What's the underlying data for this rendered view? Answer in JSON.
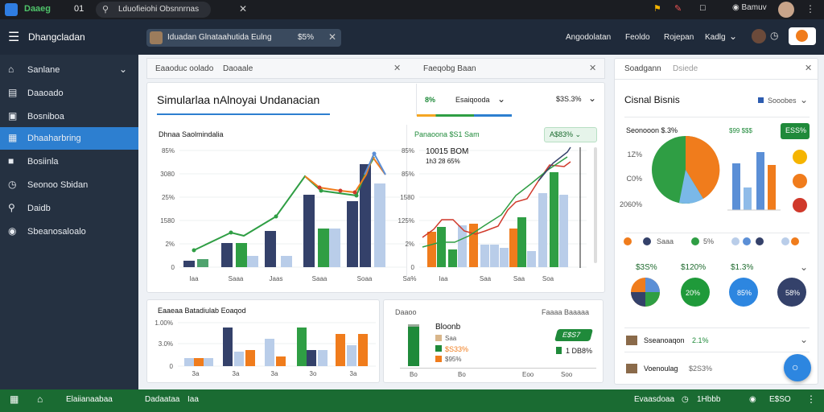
{
  "topbar": {
    "app_name": "Daaeg",
    "count": "01",
    "search_text": "Lduofieiohi Obsnnrnas",
    "user": "Bamuv"
  },
  "header": {
    "title": "Dhangcladan",
    "chip_text": "Iduadan Glnataahutida Eulng",
    "chip_value": "$5%",
    "nav": [
      "Angodolatan",
      "Feoldo",
      "Rojepan",
      "Kadlg"
    ]
  },
  "sidebar": {
    "items": [
      {
        "label": "Sanlane",
        "icon": "home-icon"
      },
      {
        "label": "Daaoado",
        "icon": "document-icon"
      },
      {
        "label": "Bosniboa",
        "icon": "briefcase-icon"
      },
      {
        "label": "Dhaaharbring",
        "icon": "calendar-icon"
      },
      {
        "label": "Bosiinla",
        "icon": "box-icon"
      },
      {
        "label": "Seonoo Sbidan",
        "icon": "clock-icon"
      },
      {
        "label": "Daidb",
        "icon": "search-icon"
      },
      {
        "label": "Sbeanosaloalo",
        "icon": "lock-icon"
      }
    ]
  },
  "tabs": {
    "left_a": "Eaaoduc oolado",
    "left_b": "Daoaale",
    "right": "Faeqobg Baan"
  },
  "main": {
    "title": "Simularlaa nAlnoyai Undanacian",
    "metric_pct": "8%",
    "metric_label": "Esaiqooda",
    "metric_val": "$3S.3%"
  },
  "chart_left": {
    "title": "Dhnaa Saolmindalia",
    "yticks": [
      "85%",
      "3080",
      "25%",
      "1580",
      "2%",
      "0"
    ],
    "xticks": [
      "Iaa",
      "Saaa",
      "Jaas",
      "Saaa",
      "Soaa",
      "Sa%"
    ]
  },
  "chart_mid": {
    "title": "Panaoona $S1 Sam",
    "badge": "A$83%",
    "ann1": "10015 BOM",
    "ann2": "1h3 28 65%",
    "yticks": [
      "85%",
      "85%",
      "1580",
      "125%",
      "2%",
      "0"
    ],
    "xticks": [
      "Iaa",
      "Saa",
      "Saa",
      "Soa"
    ]
  },
  "right_panel": {
    "tab_a": "Soadgann",
    "tab_b": "Dsiede",
    "title": "Cisnal Bisnis",
    "legend": "Sooobes",
    "sub": "Seonooon $.3%",
    "sub_legend": "$99 $$$",
    "badge": "ESS%",
    "yticks": [
      "1Z%",
      "C0%",
      "2060%"
    ],
    "legend_row": [
      "Saaa",
      "5%"
    ],
    "values": [
      "$3S%",
      "$120%",
      "$1.3%"
    ],
    "rings": [
      "20%",
      "85%",
      "58%"
    ],
    "rows": [
      {
        "label": "Sseanoaqon",
        "value": "2.1%"
      },
      {
        "label": "Voenoulag",
        "value": "$2S3%"
      }
    ]
  },
  "bottom_left": {
    "title": "Eaaeaa Batadiulab Eoaqod",
    "yticks": [
      "1.00%",
      "3.0%",
      "0"
    ],
    "xticks": [
      "3a",
      "3a",
      "3a",
      "3o",
      "3a"
    ]
  },
  "bottom_mid": {
    "tab_a": "Daaoo",
    "tab_b": "Faaaa Baaaaa",
    "title": "Bloonb",
    "rows": [
      "Saa",
      "$S33%",
      "$95%"
    ],
    "badge": "E$S7",
    "value": "1 DB8%",
    "xticks": [
      "Bo",
      "Bo",
      "Eoo",
      "Soo"
    ]
  },
  "footer": {
    "home": "Elaiianaabaa",
    "link1": "Dadaataa",
    "link2": "Iaa",
    "right_a": "Evaasdoaa",
    "right_b": "1Hbbb",
    "right_c": "E$SO"
  },
  "colors": {
    "navy": "#34416a",
    "green": "#2f9e44",
    "orange": "#f07c1c",
    "blue": "#5b8fd6",
    "lightblue": "#b9cde9",
    "red": "#d0392b",
    "teal": "#4fa36e"
  }
}
